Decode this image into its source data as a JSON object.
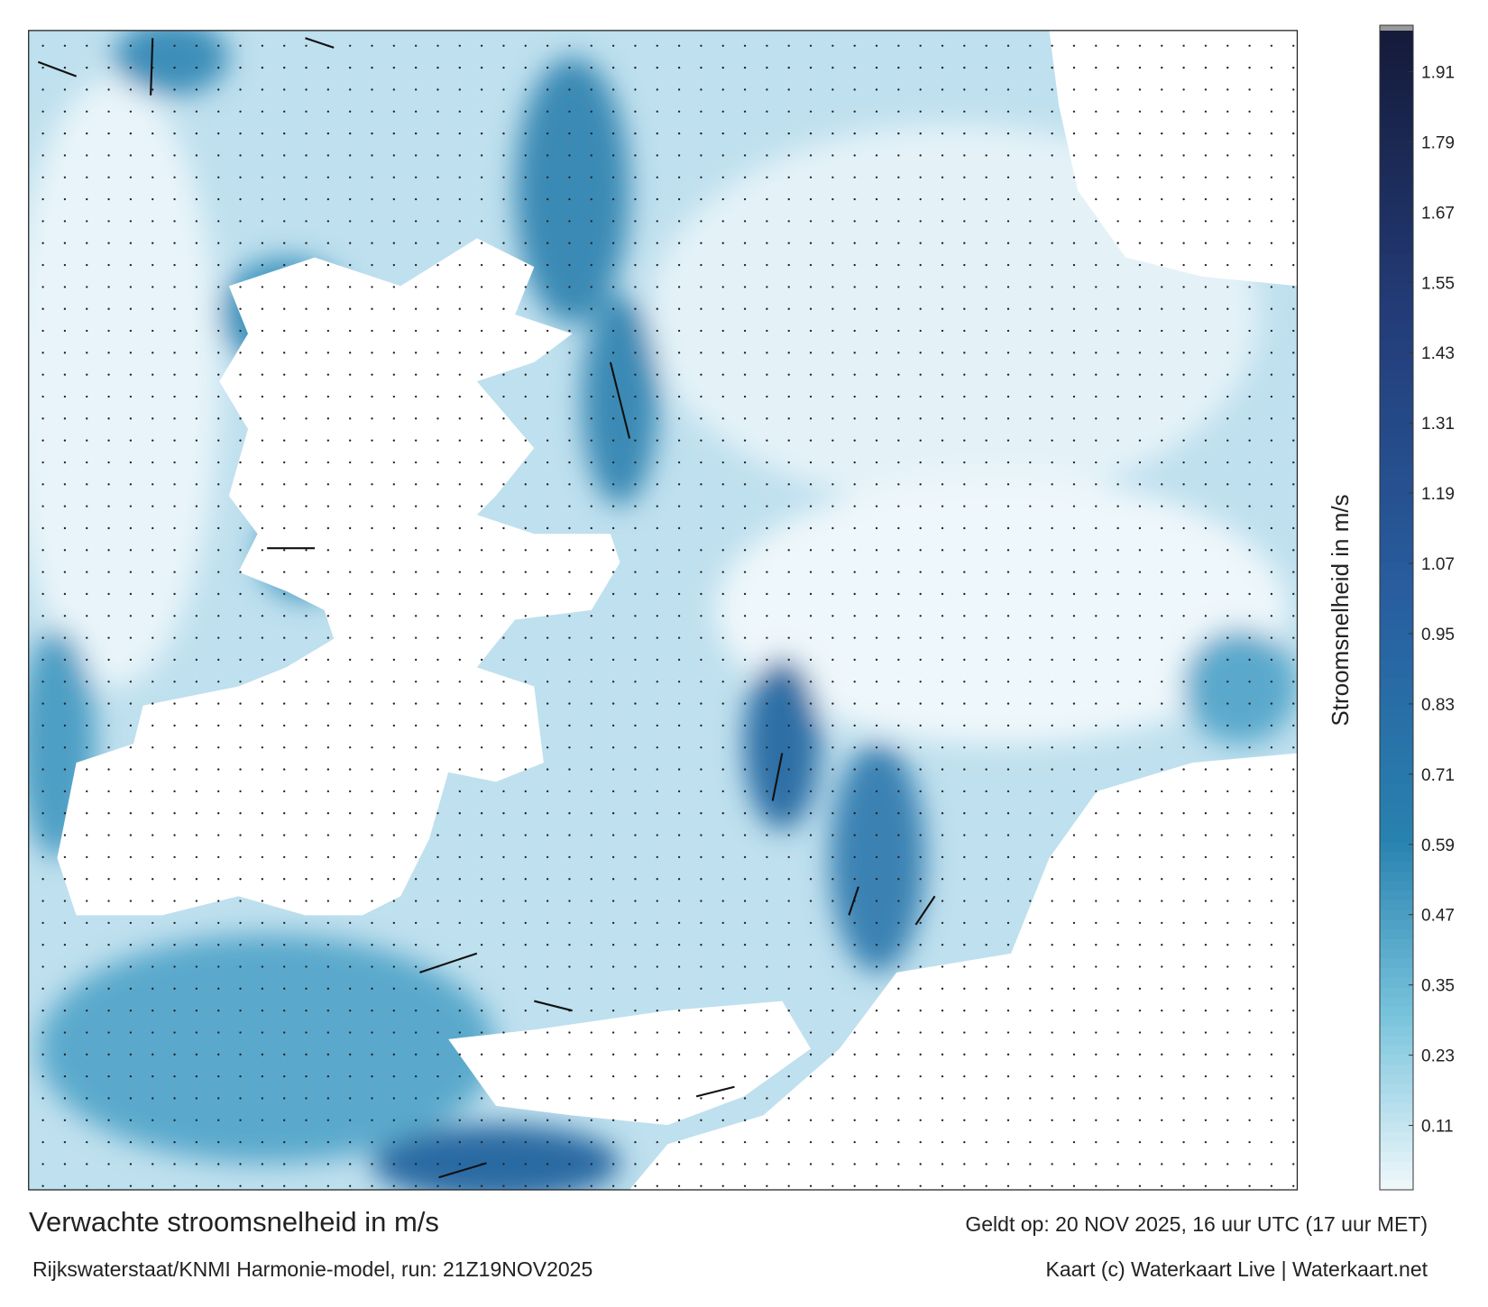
{
  "title": "Verwachte stroomsnelheid in m/s",
  "subtitle": "Rijkswaterstaat/KNMI Harmonie-model, run: 21Z19NOV2025",
  "valid_time": "Geldt op: 20 NOV 2025, 16 uur UTC (17 uur MET)",
  "credit": "Kaart (c) Waterkaart Live | Waterkaart.net",
  "colorbar": {
    "label": "Stroomsnelheid in m/s",
    "lim": [
      0,
      1.98
    ],
    "ticks": [
      0.11,
      0.23,
      0.35,
      0.47,
      0.59,
      0.71,
      0.83,
      0.95,
      1.07,
      1.19,
      1.31,
      1.43,
      1.55,
      1.67,
      1.79,
      1.91
    ]
  }
}
